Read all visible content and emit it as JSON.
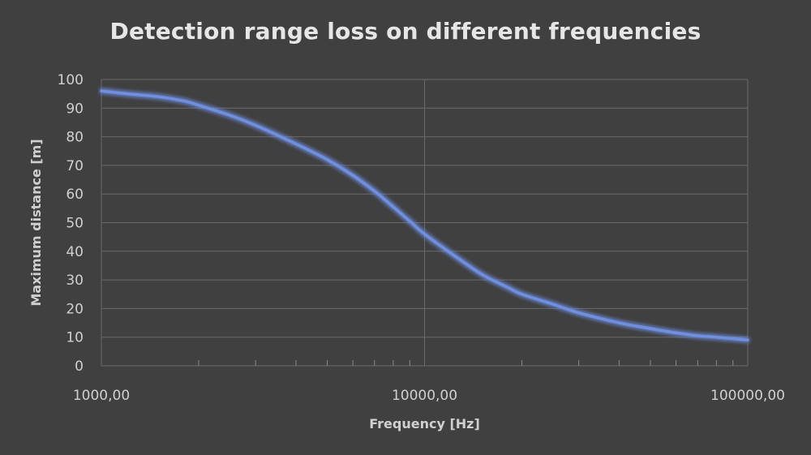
{
  "chart_data": {
    "type": "line",
    "title": "Detection range loss on different frequencies",
    "xlabel": "Frequency [Hz]",
    "ylabel": "Maximum distance [m]",
    "x_scale": "log",
    "xlim": [
      1000,
      100000
    ],
    "ylim": [
      0,
      100
    ],
    "x_ticks": [
      1000,
      10000,
      100000
    ],
    "x_tick_labels": [
      "1000,00",
      "10000,00",
      "100000,00"
    ],
    "y_ticks": [
      0,
      10,
      20,
      30,
      40,
      50,
      60,
      70,
      80,
      90,
      100
    ],
    "y_tick_labels": [
      "0",
      "10",
      "20",
      "30",
      "40",
      "50",
      "60",
      "70",
      "80",
      "90",
      "100"
    ],
    "grid": true,
    "legend": "none",
    "series": [
      {
        "color": "#6f8fe0",
        "x": [
          1000,
          1200,
          1500,
          1800,
          2000,
          2500,
          3000,
          4000,
          5000,
          6000,
          7000,
          8000,
          9000,
          10000,
          12000,
          15000,
          18000,
          20000,
          25000,
          30000,
          40000,
          50000,
          60000,
          70000,
          80000,
          100000
        ],
        "y": [
          96,
          95,
          94,
          92.5,
          91,
          87.5,
          84,
          77.5,
          72,
          66.5,
          61,
          55.5,
          50.5,
          46,
          39.5,
          32,
          27.5,
          25,
          21.5,
          18.5,
          15,
          13,
          11.5,
          10.5,
          10,
          9
        ]
      }
    ]
  }
}
